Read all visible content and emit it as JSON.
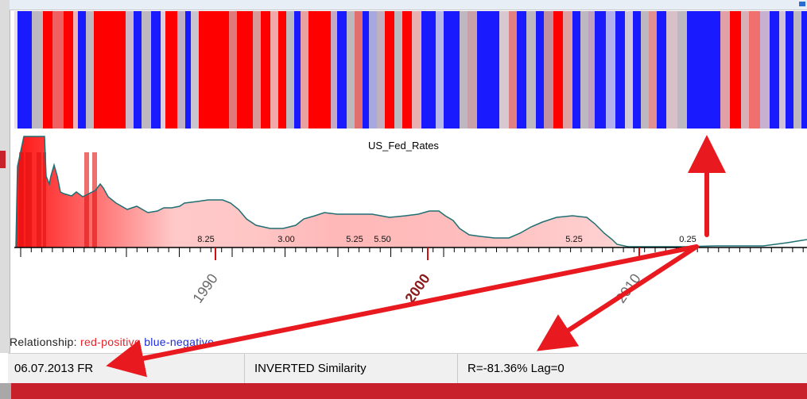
{
  "chart_title": "US_Fed_Rates",
  "rate_labels": [
    "8.25",
    "3.00",
    "5.25",
    "5.50",
    "5.25",
    "0.25"
  ],
  "year_labels": [
    "1990",
    "2000",
    "2010"
  ],
  "legend": {
    "prefix": "Relationship:",
    "positive": "red-positive",
    "negative": "blue-negative"
  },
  "status": {
    "date": "06.07.2013 FR",
    "mode": "INVERTED Similarity",
    "stats": "R=-81.36%  Lag=0"
  },
  "colors": {
    "positive": "#ff0000",
    "negative": "#1a1aff",
    "neutral": "#bdb7bf",
    "area_outline": "#1f6f73",
    "arrow": "#e8191f"
  },
  "chart_data": {
    "type": "area",
    "title": "US_Fed_Rates",
    "x_tick_labels": [
      "1990",
      "2000",
      "2010"
    ],
    "annotations": [
      "8.25",
      "3.00",
      "5.25",
      "5.50",
      "5.25",
      "0.25"
    ],
    "x_range": [
      "1981",
      "2018"
    ]
  }
}
